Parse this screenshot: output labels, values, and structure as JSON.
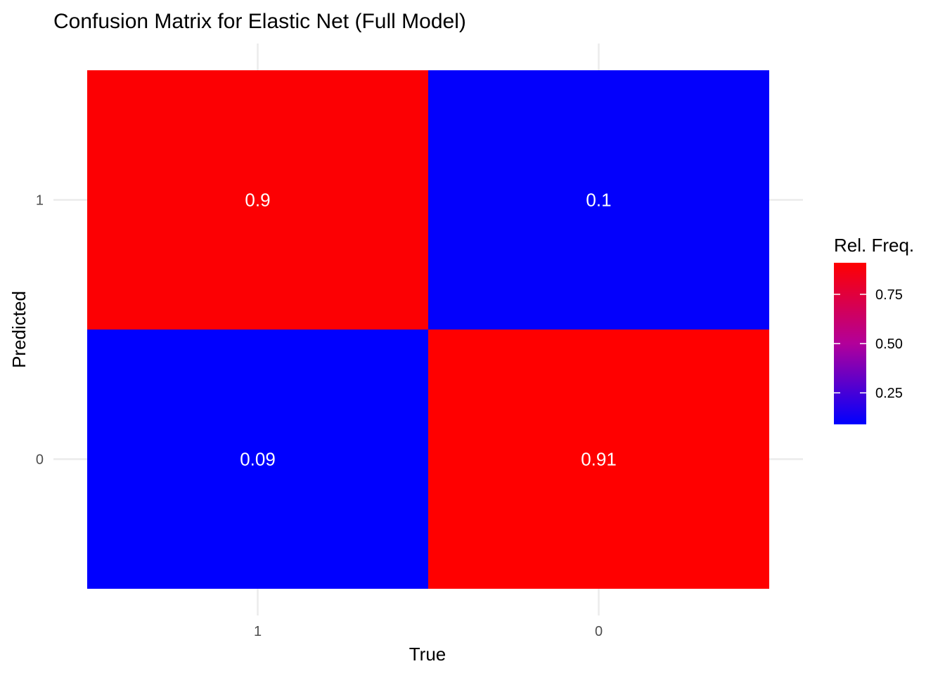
{
  "chart_data": {
    "type": "heatmap",
    "title": "Confusion Matrix for Elastic Net (Full Model)",
    "xlabel": "True",
    "ylabel": "Predicted",
    "x_categories": [
      "1",
      "0"
    ],
    "y_categories": [
      "0",
      "1"
    ],
    "cells": [
      {
        "x": "1",
        "y": "1",
        "value": 0.9,
        "label": "0.9"
      },
      {
        "x": "0",
        "y": "1",
        "value": 0.1,
        "label": "0.1"
      },
      {
        "x": "1",
        "y": "0",
        "value": 0.09,
        "label": "0.09"
      },
      {
        "x": "0",
        "y": "0",
        "value": 0.91,
        "label": "0.91"
      }
    ],
    "color_scale": {
      "low": "#0000FF",
      "high": "#FF0000",
      "domain": [
        0.09,
        0.91
      ]
    },
    "legend": {
      "title": "Rel. Freq.",
      "ticks": [
        {
          "value": 0.25,
          "label": "0.25"
        },
        {
          "value": 0.5,
          "label": "0.50"
        },
        {
          "value": 0.75,
          "label": "0.75"
        }
      ],
      "position": "right"
    },
    "grid": true,
    "colors": {
      "grid": "#EBEBEB",
      "cell_text": "#FFFFFF",
      "axis_text": "#4D4D4D",
      "title_text": "#000000"
    }
  }
}
